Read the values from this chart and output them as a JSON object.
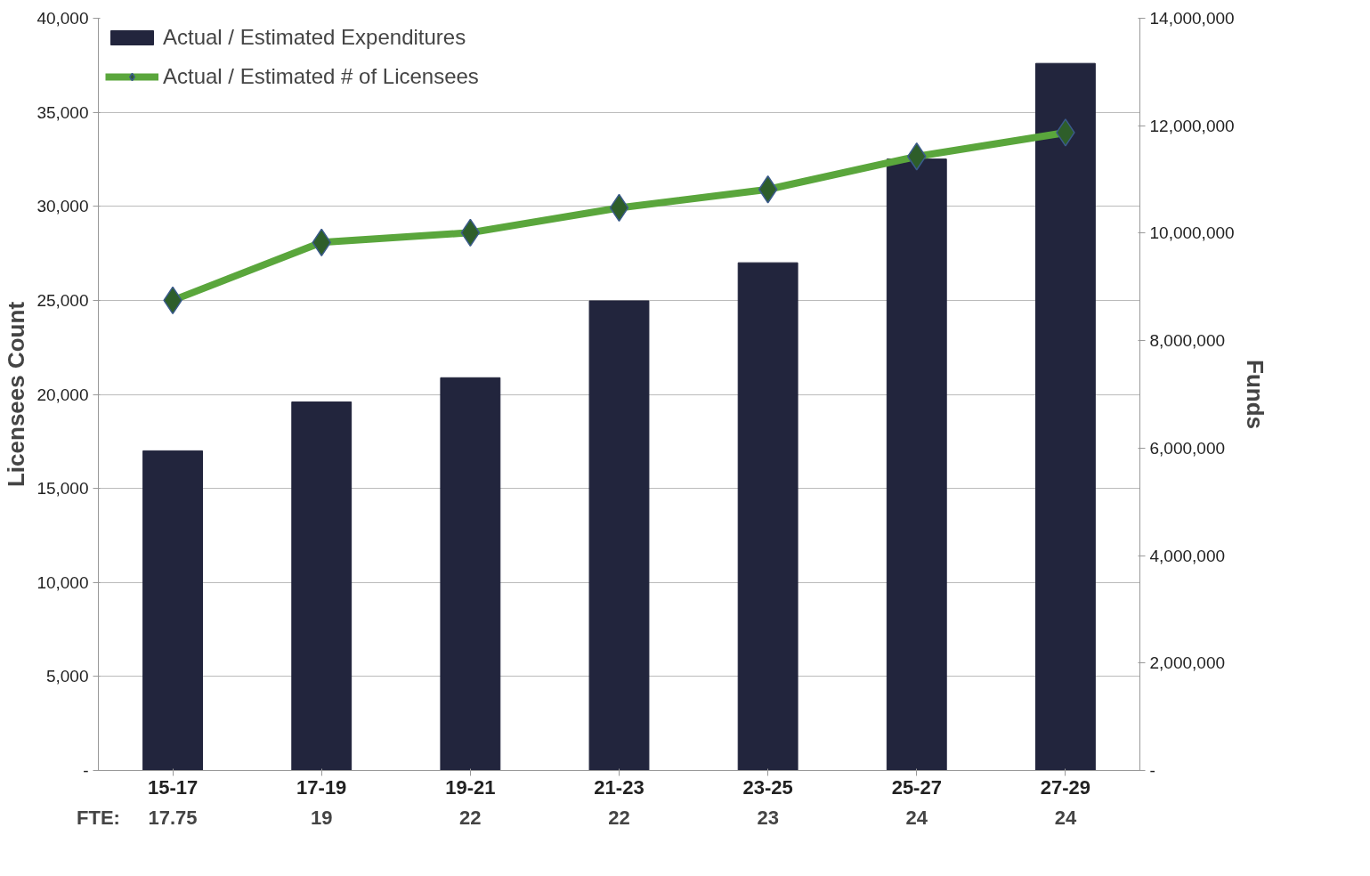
{
  "chart_data": {
    "type": "bar",
    "categories": [
      "15-17",
      "17-19",
      "19-21",
      "21-23",
      "23-25",
      "25-27",
      "27-29"
    ],
    "series": [
      {
        "name": "Actual / Estimated Expenditures",
        "axis": "y2",
        "color": "#22253d",
        "values": [
          5950000,
          6860000,
          7310000,
          8740000,
          9450000,
          11380000,
          13160000
        ]
      },
      {
        "name": "Actual / Estimated # of Licensees",
        "type": "line",
        "color": "#5aa63c",
        "marker": "diamond",
        "values": [
          25000,
          28080,
          28600,
          29920,
          30900,
          32650,
          33920
        ]
      }
    ],
    "ylabel": "Licensees Count",
    "y2label": "Funds",
    "ylim": [
      0,
      40000
    ],
    "yticks": [
      {
        "value": 0,
        "label": "-"
      },
      {
        "value": 5000,
        "label": "5,000"
      },
      {
        "value": 10000,
        "label": "10,000"
      },
      {
        "value": 15000,
        "label": "15,000"
      },
      {
        "value": 20000,
        "label": "20,000"
      },
      {
        "value": 25000,
        "label": "25,000"
      },
      {
        "value": 30000,
        "label": "30,000"
      },
      {
        "value": 35000,
        "label": "35,000"
      },
      {
        "value": 40000,
        "label": "40,000"
      }
    ],
    "y2lim": [
      0,
      14000000
    ],
    "y2ticks": [
      {
        "value": 0,
        "label": "-"
      },
      {
        "value": 2000000,
        "label": "2,000,000"
      },
      {
        "value": 4000000,
        "label": "4,000,000"
      },
      {
        "value": 6000000,
        "label": "6,000,000"
      },
      {
        "value": 8000000,
        "label": "8,000,000"
      },
      {
        "value": 10000000,
        "label": "10,000,000"
      },
      {
        "value": 12000000,
        "label": "12,000,000"
      },
      {
        "value": 14000000,
        "label": "14,000,000"
      }
    ],
    "annotations": [
      "FTE:",
      "17.75",
      "19",
      "22",
      "22",
      "23",
      "24",
      "24"
    ],
    "grid": "y",
    "legend": "top left"
  }
}
